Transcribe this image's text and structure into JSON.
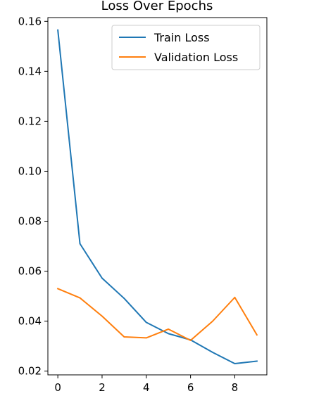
{
  "chart_data": {
    "type": "line",
    "title": "Loss Over Epochs",
    "xlabel": "",
    "ylabel": "",
    "x": [
      0,
      1,
      2,
      3,
      4,
      5,
      6,
      7,
      8,
      9
    ],
    "xlim": [
      -0.45,
      9.45
    ],
    "ylim": [
      0.0185,
      0.1615
    ],
    "xticks": [
      0,
      2,
      4,
      6,
      8
    ],
    "yticks": [
      0.02,
      0.04,
      0.06,
      0.08,
      0.1,
      0.12,
      0.14,
      0.16
    ],
    "grid": false,
    "legend_position": "top-right",
    "series": [
      {
        "name": "Train Loss",
        "color": "#1f77b4",
        "values": [
          0.1565,
          0.071,
          0.0572,
          0.0491,
          0.0395,
          0.035,
          0.0325,
          0.0275,
          0.023,
          0.024
        ]
      },
      {
        "name": "Validation Loss",
        "color": "#ff7f0e",
        "values": [
          0.053,
          0.0493,
          0.042,
          0.0337,
          0.0333,
          0.0368,
          0.0323,
          0.04,
          0.0495,
          0.0345
        ]
      }
    ]
  }
}
